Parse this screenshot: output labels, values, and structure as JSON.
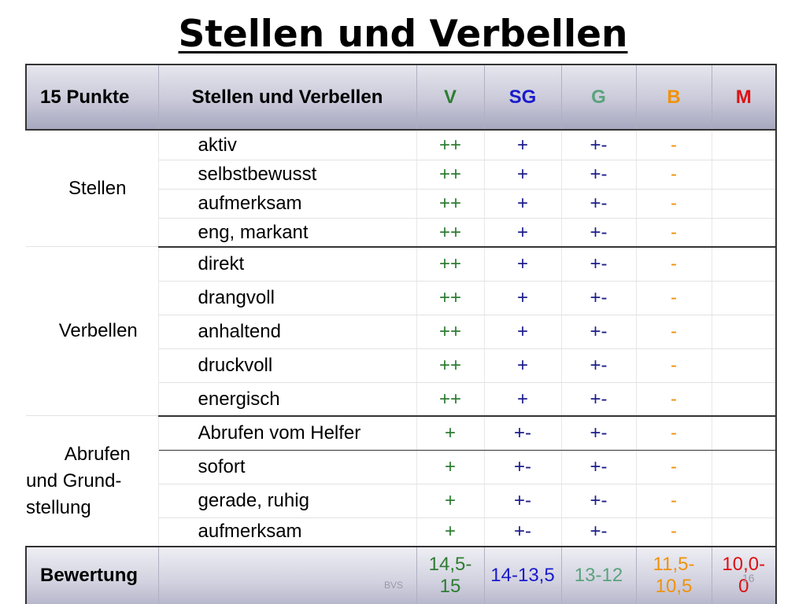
{
  "title": "Stellen und Verbellen",
  "header": {
    "col0": "15 Punkte",
    "col1": "Stellen und Verbellen",
    "v": "V",
    "sg": "SG",
    "g": "G",
    "b": "B",
    "m": "M"
  },
  "colors": {
    "v": "#2e7d32",
    "sg": "#1a1acc",
    "g": "#5aa37c",
    "b": "#f0920a",
    "m": "#dd1111"
  },
  "groups": [
    {
      "label": "Stellen",
      "rows": [
        {
          "item": "aktiv",
          "v": "++",
          "sg": "+",
          "g": "+-",
          "b": "-"
        },
        {
          "item": "selbstbewusst",
          "v": "++",
          "sg": "+",
          "g": "+-",
          "b": "-"
        },
        {
          "item": "aufmerksam",
          "v": "++",
          "sg": "+",
          "g": "+-",
          "b": "-"
        },
        {
          "item": "eng, markant",
          "v": "++",
          "sg": "+",
          "g": "+-",
          "b": "-"
        }
      ]
    },
    {
      "label": "Verbellen",
      "rows": [
        {
          "item": "direkt",
          "v": "++",
          "sg": "+",
          "g": "+-",
          "b": "-"
        },
        {
          "item": "drangvoll",
          "v": "++",
          "sg": "+",
          "g": "+-",
          "b": "-"
        },
        {
          "item": "anhaltend",
          "v": "++",
          "sg": "+",
          "g": "+-",
          "b": "-"
        },
        {
          "item": "druckvoll",
          "v": "++",
          "sg": "+",
          "g": "+-",
          "b": "-"
        },
        {
          "item": "energisch",
          "v": "++",
          "sg": "+",
          "g": "+-",
          "b": "-"
        }
      ]
    },
    {
      "label_lines": [
        "Abrufen",
        "und Grund-",
        "stellung"
      ],
      "rows": [
        {
          "item": "Abrufen vom Helfer",
          "v": "+",
          "sg": "+-",
          "g": "+-",
          "b": "-"
        },
        {
          "item": "sofort",
          "v": "+",
          "sg": "+-",
          "g": "+-",
          "b": "-"
        },
        {
          "item": "gerade, ruhig",
          "v": "+",
          "sg": "+-",
          "g": "+-",
          "b": "-"
        },
        {
          "item": "aufmerksam",
          "v": "+",
          "sg": "+-",
          "g": "+-",
          "b": "-"
        }
      ]
    }
  ],
  "bewertung": {
    "label": "Bewertung",
    "v": [
      "14,5-",
      "15"
    ],
    "sg": "14-13,5",
    "g": "13-12",
    "b": [
      "11,5-",
      "10,5"
    ],
    "m": [
      "10,0-",
      "0"
    ]
  },
  "page_number": "16",
  "footer_text": "BVS"
}
